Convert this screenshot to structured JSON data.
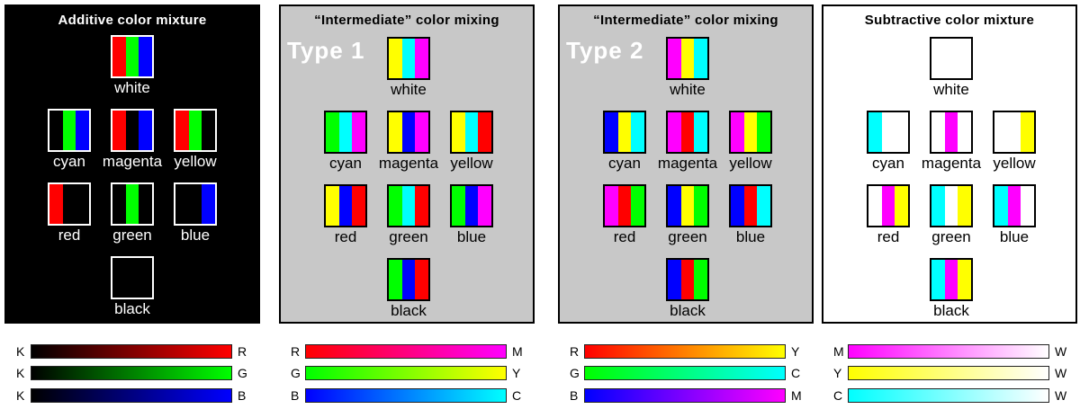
{
  "panels": [
    {
      "id": "additive",
      "title": "Additive color mixture",
      "type_label": "",
      "swatches": [
        {
          "label": "white",
          "stripes": [
            "#ff0000",
            "#00ff00",
            "#0000ff"
          ]
        },
        {
          "label": "cyan",
          "stripes": [
            "#000000",
            "#00ff00",
            "#0000ff"
          ]
        },
        {
          "label": "magenta",
          "stripes": [
            "#ff0000",
            "#000000",
            "#0000ff"
          ]
        },
        {
          "label": "yellow",
          "stripes": [
            "#ff0000",
            "#00ff00",
            "#000000"
          ]
        },
        {
          "label": "red",
          "stripes": [
            "#ff0000",
            "#000000",
            "#000000"
          ]
        },
        {
          "label": "green",
          "stripes": [
            "#000000",
            "#00ff00",
            "#000000"
          ]
        },
        {
          "label": "blue",
          "stripes": [
            "#000000",
            "#000000",
            "#0000ff"
          ]
        },
        {
          "label": "black",
          "stripes": [
            "#000000",
            "#000000",
            "#000000"
          ]
        }
      ],
      "ramps": [
        {
          "left": "K",
          "right": "R",
          "from": "#000000",
          "to": "#ff0000"
        },
        {
          "left": "K",
          "right": "G",
          "from": "#000000",
          "to": "#00ff00"
        },
        {
          "left": "K",
          "right": "B",
          "from": "#000000",
          "to": "#0000ff"
        }
      ]
    },
    {
      "id": "intermediate-1",
      "title": "“Intermediate” color mixing",
      "type_label": "Type 1",
      "swatches": [
        {
          "label": "white",
          "stripes": [
            "#ffff00",
            "#00ffff",
            "#ff00ff"
          ]
        },
        {
          "label": "cyan",
          "stripes": [
            "#00ff00",
            "#00ffff",
            "#ff00ff"
          ]
        },
        {
          "label": "magenta",
          "stripes": [
            "#ffff00",
            "#0000ff",
            "#ff00ff"
          ]
        },
        {
          "label": "yellow",
          "stripes": [
            "#ffff00",
            "#00ffff",
            "#ff0000"
          ]
        },
        {
          "label": "red",
          "stripes": [
            "#ffff00",
            "#0000ff",
            "#ff0000"
          ]
        },
        {
          "label": "green",
          "stripes": [
            "#00ff00",
            "#00ffff",
            "#ff0000"
          ]
        },
        {
          "label": "blue",
          "stripes": [
            "#00ff00",
            "#0000ff",
            "#ff00ff"
          ]
        },
        {
          "label": "black",
          "stripes": [
            "#00ff00",
            "#0000ff",
            "#ff0000"
          ]
        }
      ],
      "ramps": [
        {
          "left": "R",
          "right": "M",
          "from": "#ff0000",
          "to": "#ff00ff"
        },
        {
          "left": "G",
          "right": "Y",
          "from": "#00ff00",
          "to": "#ffff00"
        },
        {
          "left": "B",
          "right": "C",
          "from": "#0000ff",
          "to": "#00ffff"
        }
      ]
    },
    {
      "id": "intermediate-2",
      "title": "“Intermediate” color mixing",
      "type_label": "Type 2",
      "swatches": [
        {
          "label": "white",
          "stripes": [
            "#ff00ff",
            "#ffff00",
            "#00ffff"
          ]
        },
        {
          "label": "cyan",
          "stripes": [
            "#0000ff",
            "#ffff00",
            "#00ffff"
          ]
        },
        {
          "label": "magenta",
          "stripes": [
            "#ff00ff",
            "#ff0000",
            "#00ffff"
          ]
        },
        {
          "label": "yellow",
          "stripes": [
            "#ff00ff",
            "#ffff00",
            "#00ff00"
          ]
        },
        {
          "label": "red",
          "stripes": [
            "#ff00ff",
            "#ff0000",
            "#00ff00"
          ]
        },
        {
          "label": "green",
          "stripes": [
            "#0000ff",
            "#ffff00",
            "#00ff00"
          ]
        },
        {
          "label": "blue",
          "stripes": [
            "#0000ff",
            "#ff0000",
            "#00ffff"
          ]
        },
        {
          "label": "black",
          "stripes": [
            "#0000ff",
            "#ff0000",
            "#00ff00"
          ]
        }
      ],
      "ramps": [
        {
          "left": "R",
          "right": "Y",
          "from": "#ff0000",
          "to": "#ffff00"
        },
        {
          "left": "G",
          "right": "C",
          "from": "#00ff00",
          "to": "#00ffff"
        },
        {
          "left": "B",
          "right": "M",
          "from": "#0000ff",
          "to": "#ff00ff"
        }
      ]
    },
    {
      "id": "subtractive",
      "title": "Subtractive color mixture",
      "type_label": "",
      "swatches": [
        {
          "label": "white",
          "stripes": [
            "#ffffff",
            "#ffffff",
            "#ffffff"
          ]
        },
        {
          "label": "cyan",
          "stripes": [
            "#00ffff",
            "#ffffff",
            "#ffffff"
          ]
        },
        {
          "label": "magenta",
          "stripes": [
            "#ffffff",
            "#ff00ff",
            "#ffffff"
          ]
        },
        {
          "label": "yellow",
          "stripes": [
            "#ffffff",
            "#ffffff",
            "#ffff00"
          ]
        },
        {
          "label": "red",
          "stripes": [
            "#ffffff",
            "#ff00ff",
            "#ffff00"
          ]
        },
        {
          "label": "green",
          "stripes": [
            "#00ffff",
            "#ffffff",
            "#ffff00"
          ]
        },
        {
          "label": "blue",
          "stripes": [
            "#00ffff",
            "#ff00ff",
            "#ffffff"
          ]
        },
        {
          "label": "black",
          "stripes": [
            "#00ffff",
            "#ff00ff",
            "#ffff00"
          ]
        }
      ],
      "ramps": [
        {
          "left": "M",
          "right": "W",
          "from": "#ff00ff",
          "to": "#ffffff"
        },
        {
          "left": "Y",
          "right": "W",
          "from": "#ffff00",
          "to": "#ffffff"
        },
        {
          "left": "C",
          "right": "W",
          "from": "#00ffff",
          "to": "#ffffff"
        }
      ]
    }
  ]
}
